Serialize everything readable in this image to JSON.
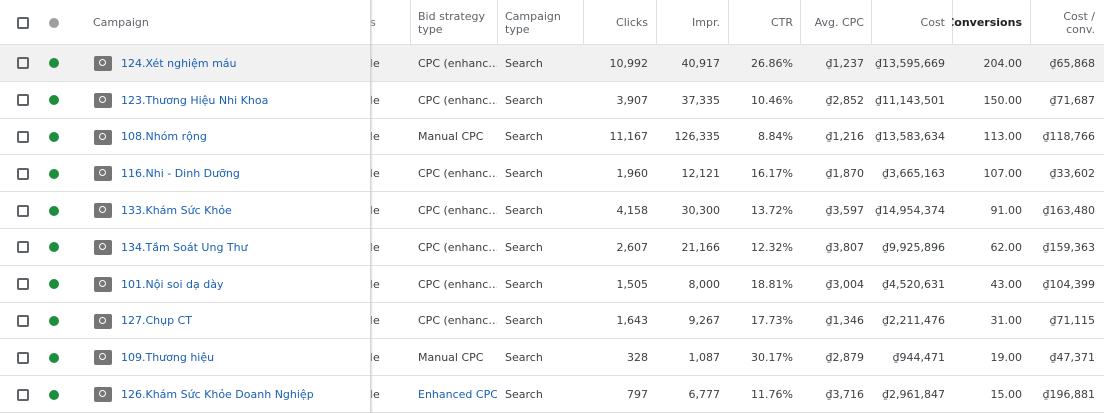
{
  "table": {
    "header": [
      "Campaign",
      "s",
      "Bid strategy type",
      "Campaign type",
      "Clicks",
      "Impr.",
      "CTR",
      "Avg. CPC",
      "Cost",
      "Conversions",
      "Cost / conv."
    ],
    "rows": [
      [
        "124.Xét nghiệm máu",
        "le",
        "CPC (enhanc…",
        "Search",
        "10,992",
        "40,917",
        "26.86%",
        "₫1,237",
        "₫13,595,669",
        "204.00",
        "₫65,868"
      ],
      [
        "123.Thương Hiệu Nhi Khoa",
        "le",
        "CPC (enhanc…",
        "Search",
        "3,907",
        "37,335",
        "10.46%",
        "₫2,852",
        "₫11,143,501",
        "150.00",
        "₫71,687"
      ],
      [
        "108.Nhóm rộng",
        "le",
        "Manual CPC",
        "Search",
        "11,167",
        "126,335",
        "8.84%",
        "₫1,216",
        "₫13,583,634",
        "113.00",
        "₫118,766"
      ],
      [
        "116.Nhi - Dinh Dưỡng",
        "le",
        "CPC (enhanc…",
        "Search",
        "1,960",
        "12,121",
        "16.17%",
        "₫1,870",
        "₫3,665,163",
        "107.00",
        "₫33,602"
      ],
      [
        "133.Khám Sức Khỏe",
        "le",
        "CPC (enhanc…",
        "Search",
        "4,158",
        "30,300",
        "13.72%",
        "₫3,597",
        "₫14,954,374",
        "91.00",
        "₫163,480"
      ],
      [
        "134.Tầm Soát Ung Thư",
        "le",
        "CPC (enhanc…",
        "Search",
        "2,607",
        "21,166",
        "12.32%",
        "₫3,807",
        "₫9,925,896",
        "62.00",
        "₫159,363"
      ],
      [
        "101.Nội soi dạ dày",
        "le",
        "CPC (enhanc…",
        "Search",
        "1,505",
        "8,000",
        "18.81%",
        "₫3,004",
        "₫4,520,631",
        "43.00",
        "₫104,399"
      ],
      [
        "127.Chụp CT",
        "le",
        "CPC (enhanc…",
        "Search",
        "1,643",
        "9,267",
        "17.73%",
        "₫1,346",
        "₫2,211,476",
        "31.00",
        "₫71,115"
      ],
      [
        "109.Thương hiệu",
        "le",
        "Manual CPC",
        "Search",
        "328",
        "1,087",
        "30.17%",
        "₫2,879",
        "₫944,471",
        "19.00",
        "₫47,371"
      ],
      [
        "126.Khám Sức Khỏe Doanh Nghiệp",
        "le",
        "Enhanced CPC",
        "Search",
        "797",
        "6,777",
        "11.76%",
        "₫3,716",
        "₫2,961,847",
        "15.00",
        "₫196,881"
      ]
    ]
  }
}
